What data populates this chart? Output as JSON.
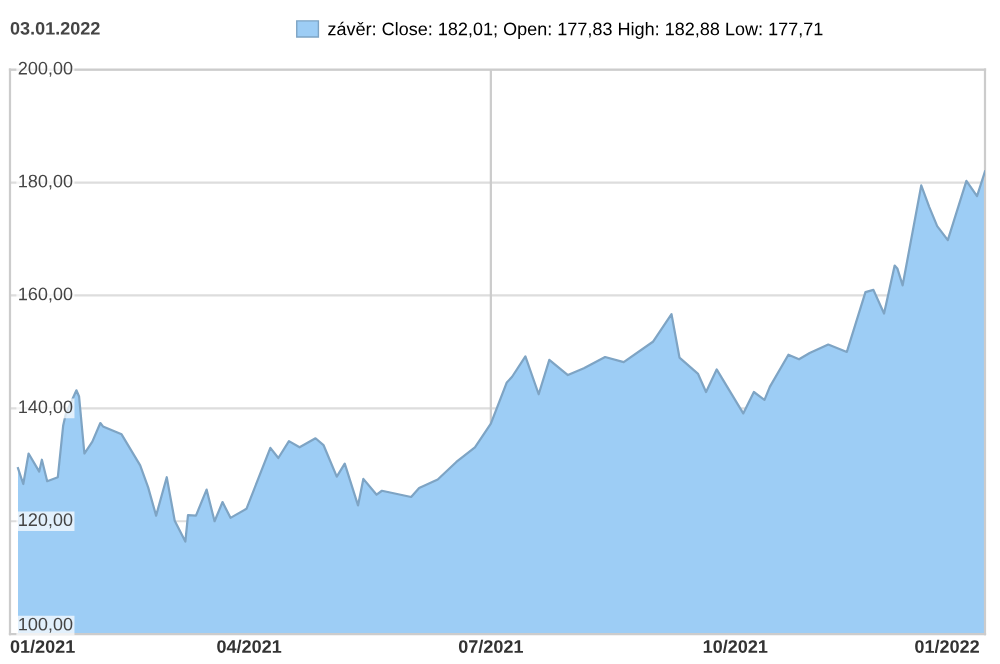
{
  "chart_data": {
    "type": "area",
    "title": "03.01.2022",
    "x": [
      "2021-01-04",
      "2021-01-06",
      "2021-01-08",
      "2021-01-12",
      "2021-01-13",
      "2021-01-15",
      "2021-01-19",
      "2021-01-21",
      "2021-01-22",
      "2021-01-26",
      "2021-01-27",
      "2021-01-29",
      "2021-02-01",
      "2021-02-04",
      "2021-02-05",
      "2021-02-12",
      "2021-02-19",
      "2021-02-22",
      "2021-02-25",
      "2021-03-01",
      "2021-03-04",
      "2021-03-08",
      "2021-03-09",
      "2021-03-12",
      "2021-03-16",
      "2021-03-19",
      "2021-03-22",
      "2021-03-25",
      "2021-03-31",
      "2021-04-09",
      "2021-04-12",
      "2021-04-16",
      "2021-04-20",
      "2021-04-26",
      "2021-04-29",
      "2021-05-04",
      "2021-05-07",
      "2021-05-12",
      "2021-05-14",
      "2021-05-19",
      "2021-05-21",
      "2021-06-01",
      "2021-06-04",
      "2021-06-11",
      "2021-06-18",
      "2021-06-25",
      "2021-07-01",
      "2021-07-07",
      "2021-07-09",
      "2021-07-14",
      "2021-07-19",
      "2021-07-23",
      "2021-07-30",
      "2021-08-05",
      "2021-08-13",
      "2021-08-20",
      "2021-08-31",
      "2021-09-07",
      "2021-09-10",
      "2021-09-17",
      "2021-09-20",
      "2021-09-24",
      "2021-10-04",
      "2021-10-08",
      "2021-10-12",
      "2021-10-14",
      "2021-10-21",
      "2021-10-25",
      "2021-10-29",
      "2021-11-05",
      "2021-11-12",
      "2021-11-19",
      "2021-11-22",
      "2021-11-26",
      "2021-11-30",
      "2021-12-01",
      "2021-12-03",
      "2021-12-10",
      "2021-12-13",
      "2021-12-16",
      "2021-12-20",
      "2021-12-27",
      "2021-12-31",
      "2022-01-03"
    ],
    "series": [
      {
        "name": "závěr: Close: 182,01; Open: 177,83 High: 182,88 Low: 177,71",
        "color": "#9dcdf5",
        "values": [
          129.4,
          126.6,
          132.0,
          128.8,
          130.9,
          127.1,
          127.8,
          136.9,
          139.0,
          143.2,
          142.1,
          132.0,
          134.1,
          137.4,
          136.8,
          135.4,
          129.9,
          126.0,
          121.0,
          127.8,
          120.1,
          116.4,
          121.1,
          121.0,
          125.6,
          120.0,
          123.4,
          120.6,
          122.2,
          133.0,
          131.2,
          134.2,
          133.1,
          134.7,
          133.5,
          127.9,
          130.2,
          122.8,
          127.5,
          124.7,
          125.4,
          124.3,
          125.9,
          127.4,
          130.5,
          133.1,
          137.3,
          144.6,
          145.6,
          149.2,
          142.5,
          148.6,
          145.9,
          147.1,
          149.1,
          148.2,
          151.8,
          156.7,
          149.0,
          146.1,
          142.9,
          146.9,
          139.1,
          142.9,
          141.5,
          143.8,
          149.5,
          148.7,
          149.8,
          151.3,
          150.0,
          160.6,
          161.0,
          156.8,
          165.3,
          164.8,
          161.8,
          179.5,
          175.7,
          172.3,
          169.8,
          180.3,
          177.6,
          182.0
        ]
      }
    ],
    "xlim": [
      "2021-01-01",
      "2022-01-03"
    ],
    "xticks": [
      {
        "value": "2021-01-01",
        "label": "01/2021"
      },
      {
        "value": "2021-04-01",
        "label": "04/2021"
      },
      {
        "value": "2021-07-01",
        "label": "07/2021"
      },
      {
        "value": "2021-10-01",
        "label": "10/2021"
      },
      {
        "value": "2022-01-01",
        "label": "01/2022"
      }
    ],
    "ylim": [
      100,
      200
    ],
    "yticks": [
      {
        "value": 100,
        "label": "100,00"
      },
      {
        "value": 120,
        "label": "120,00"
      },
      {
        "value": 140,
        "label": "140,00"
      },
      {
        "value": 160,
        "label": "160,00"
      },
      {
        "value": 180,
        "label": "180,00"
      },
      {
        "value": 200,
        "label": "200,00"
      }
    ],
    "ref_lines": [
      {
        "axis": "x",
        "value": "2021-07-01",
        "color": "#cccccc"
      }
    ],
    "grid": "y",
    "legend": "top"
  }
}
